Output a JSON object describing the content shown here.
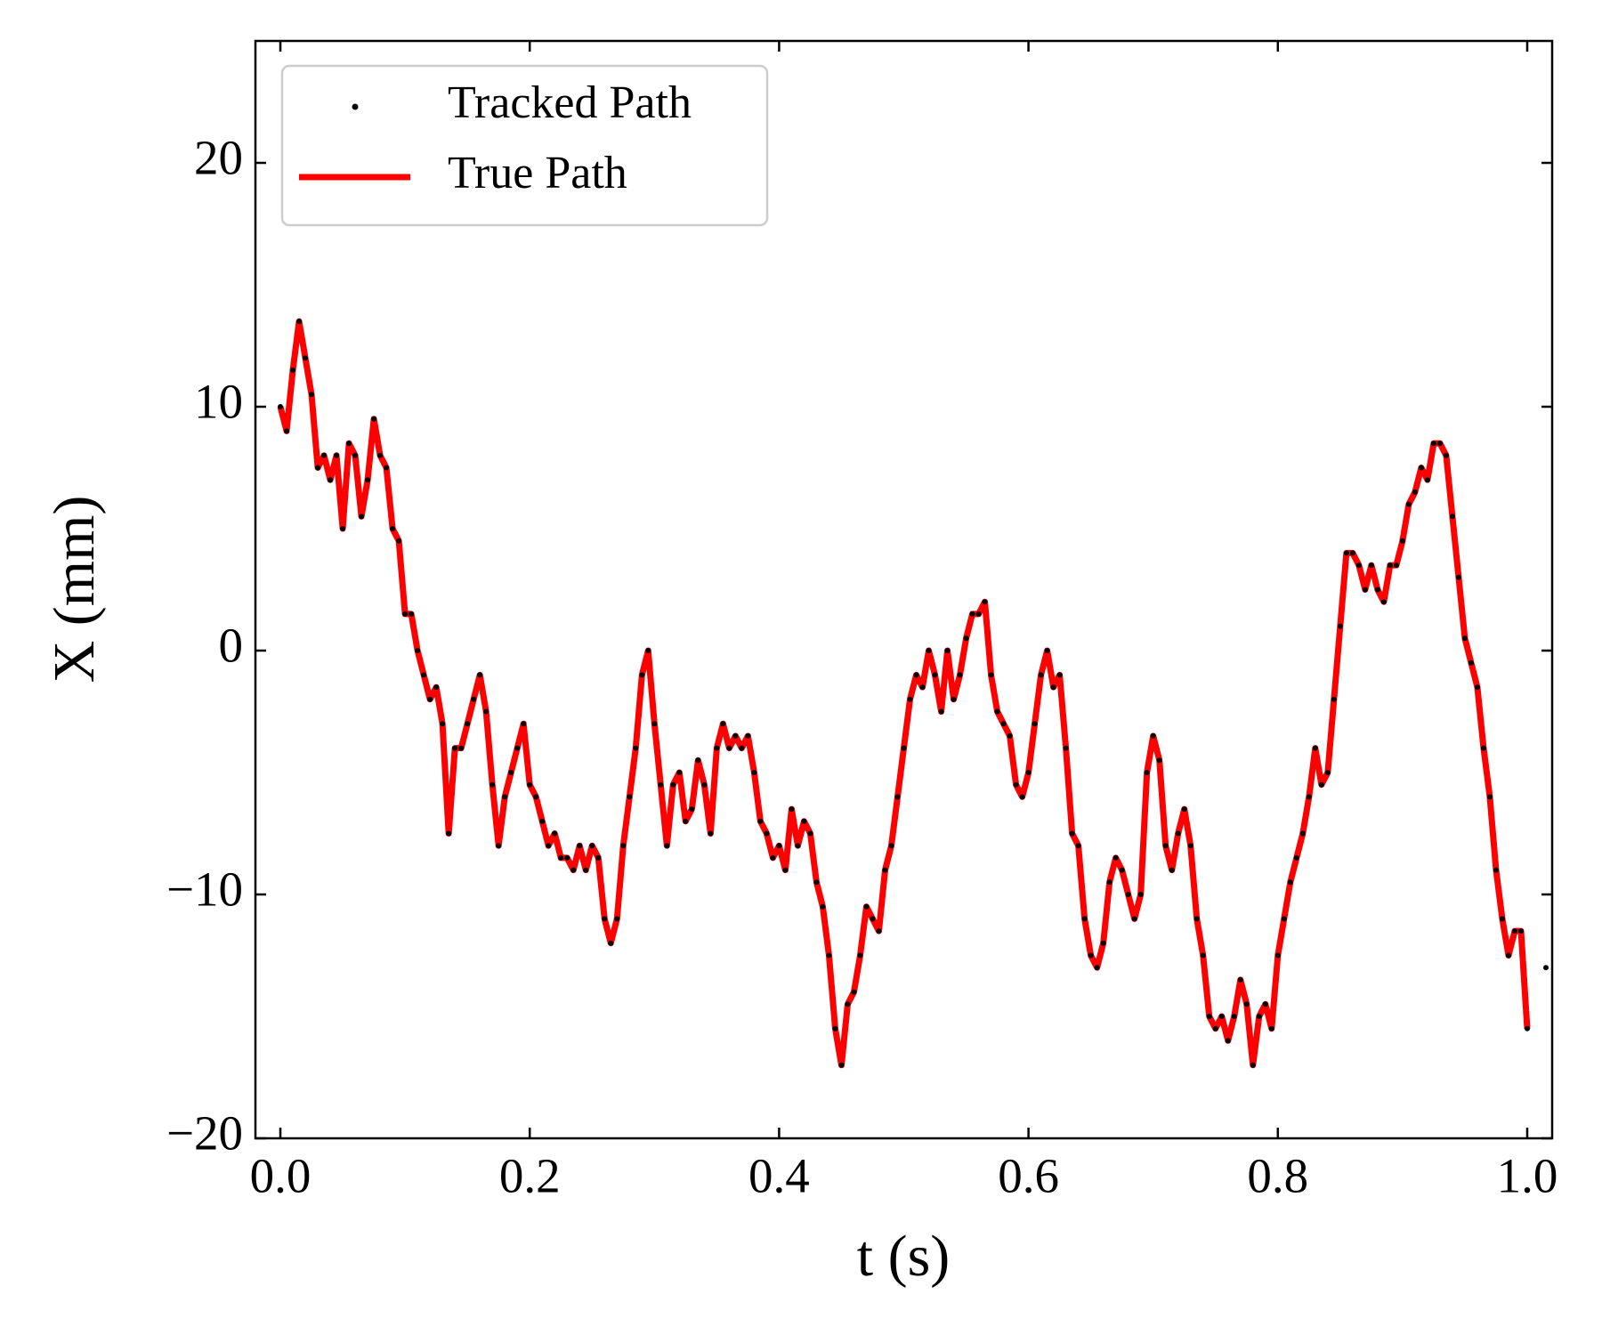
{
  "chart_data": {
    "type": "line",
    "xlabel": "t (s)",
    "ylabel": "X (mm)",
    "xlim": [
      -0.02,
      1.02
    ],
    "ylim": [
      -20,
      25
    ],
    "xticks": [
      {
        "value": 0,
        "label": "0.0"
      },
      0.2,
      0.4,
      0.6,
      0.8,
      {
        "value": 1,
        "label": "1.0"
      }
    ],
    "yticks": [
      {
        "value": -20,
        "label": "−20"
      },
      {
        "value": -10,
        "label": "−10"
      },
      0,
      10,
      20
    ],
    "legend": "upper left",
    "x": [
      0,
      0.005,
      0.01,
      0.015,
      0.02,
      0.025,
      0.03,
      0.035,
      0.04,
      0.045,
      0.05,
      0.055,
      0.06,
      0.065,
      0.07,
      0.075,
      0.08,
      0.085,
      0.09,
      0.095,
      0.1,
      0.105,
      0.11,
      0.115,
      0.12,
      0.125,
      0.13,
      0.135,
      0.14,
      0.145,
      0.15,
      0.155,
      0.16,
      0.165,
      0.17,
      0.175,
      0.18,
      0.185,
      0.19,
      0.195,
      0.2,
      0.205,
      0.21,
      0.215,
      0.22,
      0.225,
      0.23,
      0.235,
      0.24,
      0.245,
      0.25,
      0.255,
      0.26,
      0.265,
      0.27,
      0.275,
      0.28,
      0.285,
      0.29,
      0.295,
      0.3,
      0.305,
      0.31,
      0.315,
      0.32,
      0.325,
      0.33,
      0.335,
      0.34,
      0.345,
      0.35,
      0.355,
      0.36,
      0.365,
      0.37,
      0.375,
      0.38,
      0.385,
      0.39,
      0.395,
      0.4,
      0.405,
      0.41,
      0.415,
      0.42,
      0.425,
      0.43,
      0.435,
      0.44,
      0.445,
      0.45,
      0.455,
      0.46,
      0.465,
      0.47,
      0.475,
      0.48,
      0.485,
      0.49,
      0.495,
      0.5,
      0.505,
      0.51,
      0.515,
      0.52,
      0.525,
      0.53,
      0.535,
      0.54,
      0.545,
      0.55,
      0.555,
      0.56,
      0.565,
      0.57,
      0.575,
      0.58,
      0.585,
      0.59,
      0.595,
      0.6,
      0.605,
      0.61,
      0.615,
      0.62,
      0.625,
      0.63,
      0.635,
      0.64,
      0.645,
      0.65,
      0.655,
      0.66,
      0.665,
      0.67,
      0.675,
      0.68,
      0.685,
      0.69,
      0.695,
      0.7,
      0.705,
      0.71,
      0.715,
      0.72,
      0.725,
      0.73,
      0.735,
      0.74,
      0.745,
      0.75,
      0.755,
      0.76,
      0.765,
      0.77,
      0.775,
      0.78,
      0.785,
      0.79,
      0.795,
      0.8,
      0.805,
      0.81,
      0.815,
      0.82,
      0.825,
      0.83,
      0.835,
      0.84,
      0.845,
      0.85,
      0.855,
      0.86,
      0.865,
      0.87,
      0.875,
      0.88,
      0.885,
      0.89,
      0.895,
      0.9,
      0.905,
      0.91,
      0.915,
      0.92,
      0.925,
      0.93,
      0.935,
      0.94,
      0.945,
      0.95,
      0.955,
      0.96,
      0.965,
      0.97,
      0.975,
      0.98,
      0.985,
      0.99,
      0.995,
      1,
      1.015
    ],
    "series": [
      {
        "name": "Tracked Path",
        "mark": "scatter",
        "color": "#000000",
        "values": [
          10,
          9,
          11.5,
          13.5,
          12,
          10.5,
          7.5,
          8,
          7,
          8,
          5,
          8.5,
          8,
          5.5,
          7,
          9.5,
          8,
          7.5,
          5,
          4.5,
          1.5,
          1.5,
          0,
          -1,
          -2,
          -1.5,
          -3,
          -7.5,
          -4,
          -4,
          -3,
          -2,
          -1,
          -2.5,
          -5.5,
          -8,
          -6,
          -5,
          -4,
          -3,
          -5.5,
          -6,
          -7,
          -8,
          -7.5,
          -8.5,
          -8.5,
          -9,
          -8,
          -9,
          -8,
          -8.5,
          -11,
          -12,
          -11,
          -8,
          -6,
          -4,
          -1,
          0,
          -3,
          -5.5,
          -8,
          -5.5,
          -5,
          -7,
          -6.5,
          -4.5,
          -5.5,
          -7.5,
          -4,
          -3,
          -4,
          -3.5,
          -4,
          -3.5,
          -5,
          -7,
          -7.5,
          -8.5,
          -8,
          -9,
          -6.5,
          -8,
          -7,
          -7.5,
          -9.5,
          -10.5,
          -12.5,
          -15.5,
          -17,
          -14.5,
          -14,
          -12.5,
          -10.5,
          -11,
          -11.5,
          -9,
          -8,
          -6,
          -4,
          -2,
          -1,
          -1.5,
          0,
          -1,
          -2.5,
          0,
          -2,
          -1,
          0.5,
          1.5,
          1.5,
          2,
          -1,
          -2.5,
          -3,
          -3.5,
          -5.5,
          -6,
          -5,
          -3,
          -1,
          0,
          -1.5,
          -1,
          -4,
          -7.5,
          -8,
          -11,
          -12.5,
          -13,
          -12,
          -9.5,
          -8.5,
          -9,
          -10,
          -11,
          -10,
          -5,
          -3.5,
          -4.5,
          -8,
          -9,
          -7.5,
          -6.5,
          -8,
          -11,
          -12.5,
          -15,
          -15.5,
          -15,
          -16,
          -15,
          -13.5,
          -14.5,
          -17,
          -15,
          -14.5,
          -15.5,
          -12.5,
          -11,
          -9.5,
          -8.5,
          -7.5,
          -6,
          -4,
          -5.5,
          -5,
          -2,
          1,
          4,
          4,
          3.5,
          2.5,
          3.5,
          2.5,
          2,
          3.5,
          3.5,
          4.5,
          6,
          6.5,
          7.5,
          7,
          8.5,
          8.5,
          8,
          5.5,
          3,
          0.5,
          -0.5,
          -1.5,
          -4,
          -6,
          -9,
          -11,
          -12.5,
          -11.5,
          -11.5,
          -15.5,
          -13
        ]
      },
      {
        "name": "True Path",
        "mark": "line",
        "color": "#ff0000",
        "values": [
          10,
          9,
          11.5,
          13.5,
          12,
          10.5,
          7.5,
          8,
          7,
          8,
          5,
          8.5,
          8,
          5.5,
          7,
          9.5,
          8,
          7.5,
          5,
          4.5,
          1.5,
          1.5,
          0,
          -1,
          -2,
          -1.5,
          -3,
          -7.5,
          -4,
          -4,
          -3,
          -2,
          -1,
          -2.5,
          -5.5,
          -8,
          -6,
          -5,
          -4,
          -3,
          -5.5,
          -6,
          -7,
          -8,
          -7.5,
          -8.5,
          -8.5,
          -9,
          -8,
          -9,
          -8,
          -8.5,
          -11,
          -12,
          -11,
          -8,
          -6,
          -4,
          -1,
          0,
          -3,
          -5.5,
          -8,
          -5.5,
          -5,
          -7,
          -6.5,
          -4.5,
          -5.5,
          -7.5,
          -4,
          -3,
          -4,
          -3.5,
          -4,
          -3.5,
          -5,
          -7,
          -7.5,
          -8.5,
          -8,
          -9,
          -6.5,
          -8,
          -7,
          -7.5,
          -9.5,
          -10.5,
          -12.5,
          -15.5,
          -17,
          -14.5,
          -14,
          -12.5,
          -10.5,
          -11,
          -11.5,
          -9,
          -8,
          -6,
          -4,
          -2,
          -1,
          -1.5,
          0,
          -1,
          -2.5,
          0,
          -2,
          -1,
          0.5,
          1.5,
          1.5,
          2,
          -1,
          -2.5,
          -3,
          -3.5,
          -5.5,
          -6,
          -5,
          -3,
          -1,
          0,
          -1.5,
          -1,
          -4,
          -7.5,
          -8,
          -11,
          -12.5,
          -13,
          -12,
          -9.5,
          -8.5,
          -9,
          -10,
          -11,
          -10,
          -5,
          -3.5,
          -4.5,
          -8,
          -9,
          -7.5,
          -6.5,
          -8,
          -11,
          -12.5,
          -15,
          -15.5,
          -15,
          -16,
          -15,
          -13.5,
          -14.5,
          -17,
          -15,
          -14.5,
          -15.5,
          -12.5,
          -11,
          -9.5,
          -8.5,
          -7.5,
          -6,
          -4,
          -5.5,
          -5,
          -2,
          1,
          4,
          4,
          3.5,
          2.5,
          3.5,
          2.5,
          2,
          3.5,
          3.5,
          4.5,
          6,
          6.5,
          7.5,
          7,
          8.5,
          8.5,
          8,
          5.5,
          3,
          0.5,
          -0.5,
          -1.5,
          -4,
          -6,
          -9,
          -11,
          -12.5,
          -11.5,
          -11.5,
          -15.5,
          null
        ]
      }
    ]
  }
}
